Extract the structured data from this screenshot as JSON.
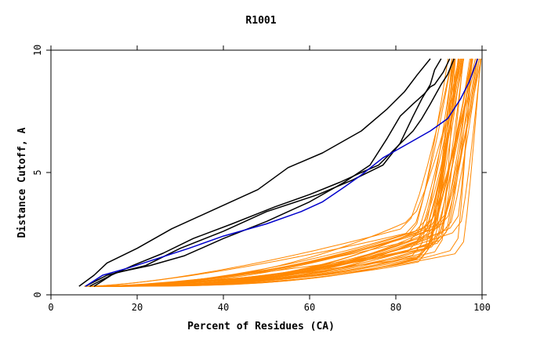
{
  "chart_data": {
    "type": "line",
    "title": "R1001",
    "xlabel": "Percent of Residues (CA)",
    "ylabel": "Distance Cutoff, A",
    "xlim": [
      0,
      100
    ],
    "ylim": [
      0,
      10
    ],
    "xticks": [
      0,
      20,
      40,
      60,
      80,
      100
    ],
    "yticks": [
      0,
      5,
      10
    ],
    "grid": false,
    "legend": "none",
    "colors": {
      "black": "#000000",
      "blue": "#0000cc",
      "orange": "#ff8800"
    },
    "highlight_series": [
      {
        "color": "black",
        "x": [
          6.5,
          10,
          13,
          20,
          28,
          38,
          48,
          55,
          63,
          72,
          78,
          82,
          85,
          88
        ],
        "y": [
          0.35,
          0.8,
          1.3,
          1.9,
          2.7,
          3.5,
          4.3,
          5.2,
          5.8,
          6.7,
          7.6,
          8.3,
          9.0,
          9.65
        ]
      },
      {
        "color": "black",
        "x": [
          8,
          13,
          22,
          30,
          40,
          50,
          62,
          70,
          77,
          81,
          84,
          86,
          88,
          89,
          90.5
        ],
        "y": [
          0.35,
          0.8,
          1.2,
          1.9,
          2.6,
          3.4,
          4.1,
          4.7,
          5.3,
          6.2,
          7.3,
          8.0,
          8.6,
          9.2,
          9.65
        ]
      },
      {
        "color": "black",
        "x": [
          9,
          15,
          23,
          31,
          40,
          50,
          60,
          68,
          74,
          78,
          81,
          84,
          86.5,
          88,
          89,
          91,
          92.5
        ],
        "y": [
          0.35,
          0.9,
          1.2,
          1.6,
          2.3,
          3.0,
          3.8,
          4.6,
          5.3,
          6.4,
          7.3,
          7.8,
          8.2,
          8.5,
          8.6,
          9.1,
          9.65
        ]
      },
      {
        "color": "black",
        "x": [
          10,
          14,
          19,
          26,
          33,
          42,
          52,
          60,
          67,
          72,
          76,
          80,
          84,
          86,
          88,
          90.5,
          92,
          93.5
        ],
        "y": [
          0.35,
          0.8,
          1.2,
          1.7,
          2.3,
          2.9,
          3.6,
          4.1,
          4.6,
          5.0,
          5.3,
          6.0,
          6.7,
          7.2,
          7.8,
          8.6,
          9.0,
          9.65
        ]
      },
      {
        "color": "blue",
        "x": [
          8,
          12,
          18,
          25,
          32,
          40,
          50,
          58,
          63,
          68,
          72,
          77,
          83,
          88,
          92,
          95,
          97,
          99
        ],
        "y": [
          0.35,
          0.8,
          1.1,
          1.5,
          1.9,
          2.4,
          2.9,
          3.4,
          3.8,
          4.4,
          4.9,
          5.6,
          6.2,
          6.7,
          7.2,
          8.0,
          8.7,
          9.65
        ]
      }
    ],
    "orange_bundle": {
      "color": "orange",
      "series_count": 40,
      "x_start_range": [
        7,
        14
      ],
      "x_end_range": [
        92,
        100
      ],
      "y_range": [
        0.35,
        9.65
      ]
    }
  }
}
